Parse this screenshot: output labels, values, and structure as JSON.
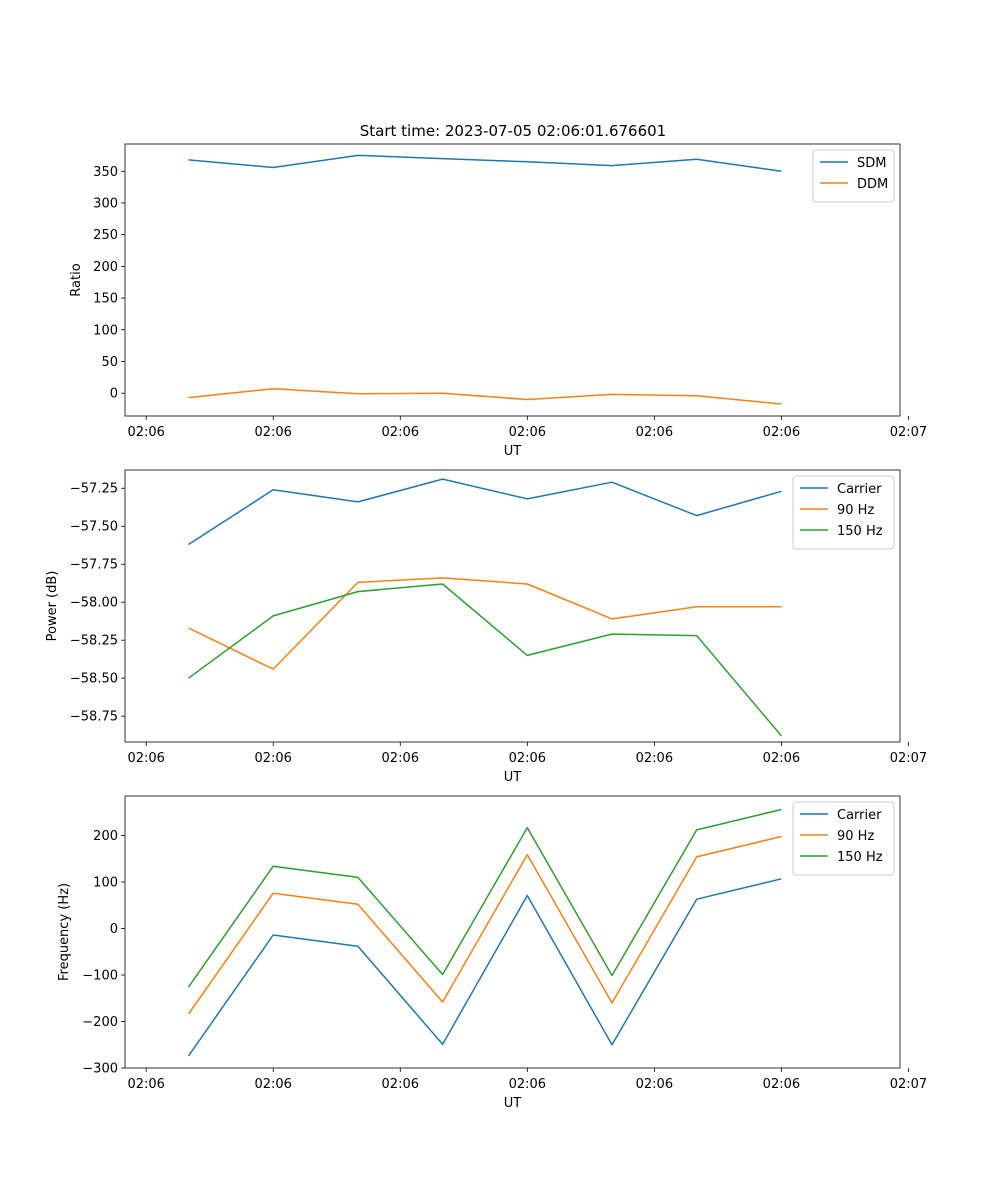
{
  "figure": {
    "suptitle": "Start time: 2023-07-05 02:06:01.676601"
  },
  "colors": {
    "blue": "#1f77b4",
    "orange": "#ff7f0e",
    "green": "#2ca02c"
  },
  "chart_data": [
    {
      "type": "line",
      "title": "Start time: 2023-07-05 02:06:01.676601",
      "xlabel": "UT",
      "ylabel": "Ratio",
      "x": [
        0,
        1,
        2,
        3,
        4,
        5,
        6,
        7
      ],
      "xlim": [
        -0.75,
        8.4
      ],
      "x_ticks": [
        {
          "x": -0.5,
          "label": "02:06"
        },
        {
          "x": 1.0,
          "label": "02:06"
        },
        {
          "x": 2.5,
          "label": "02:06"
        },
        {
          "x": 4.0,
          "label": "02:06"
        },
        {
          "x": 5.5,
          "label": "02:06"
        },
        {
          "x": 7.0,
          "label": "02:06"
        },
        {
          "x": 8.5,
          "label": "02:07"
        }
      ],
      "ylim": [
        -36,
        393
      ],
      "y_ticks": [
        {
          "y": 0,
          "label": "0"
        },
        {
          "y": 50,
          "label": "50"
        },
        {
          "y": 100,
          "label": "100"
        },
        {
          "y": 150,
          "label": "150"
        },
        {
          "y": 200,
          "label": "200"
        },
        {
          "y": 250,
          "label": "250"
        },
        {
          "y": 300,
          "label": "300"
        },
        {
          "y": 350,
          "label": "350"
        }
      ],
      "legend_position": "top-right",
      "series": [
        {
          "name": "SDM",
          "color": "#1f77b4",
          "values": [
            368,
            356,
            375,
            370,
            365,
            359,
            369,
            350
          ]
        },
        {
          "name": "DDM",
          "color": "#ff7f0e",
          "values": [
            -7,
            7,
            -1,
            0,
            -10,
            -2,
            -4,
            -17
          ]
        }
      ]
    },
    {
      "type": "line",
      "title": "",
      "xlabel": "UT",
      "ylabel": "Power (dB)",
      "x": [
        0,
        1,
        2,
        3,
        4,
        5,
        6,
        7
      ],
      "xlim": [
        -0.75,
        8.4
      ],
      "x_ticks": [
        {
          "x": -0.5,
          "label": "02:06"
        },
        {
          "x": 1.0,
          "label": "02:06"
        },
        {
          "x": 2.5,
          "label": "02:06"
        },
        {
          "x": 4.0,
          "label": "02:06"
        },
        {
          "x": 5.5,
          "label": "02:06"
        },
        {
          "x": 7.0,
          "label": "02:06"
        },
        {
          "x": 8.5,
          "label": "02:07"
        }
      ],
      "ylim": [
        -58.92,
        -57.13
      ],
      "y_ticks": [
        {
          "y": -57.25,
          "label": "−57.25"
        },
        {
          "y": -57.5,
          "label": "−57.50"
        },
        {
          "y": -57.75,
          "label": "−57.75"
        },
        {
          "y": -58.0,
          "label": "−58.00"
        },
        {
          "y": -58.25,
          "label": "−58.25"
        },
        {
          "y": -58.5,
          "label": "−58.50"
        },
        {
          "y": -58.75,
          "label": "−58.75"
        }
      ],
      "legend_position": "top-right",
      "series": [
        {
          "name": "Carrier",
          "color": "#1f77b4",
          "values": [
            -57.62,
            -57.26,
            -57.34,
            -57.19,
            -57.32,
            -57.21,
            -57.43,
            -57.27
          ]
        },
        {
          "name": "90 Hz",
          "color": "#ff7f0e",
          "values": [
            -58.17,
            -58.44,
            -57.87,
            -57.84,
            -57.88,
            -58.11,
            -58.03,
            -58.03
          ]
        },
        {
          "name": "150 Hz",
          "color": "#2ca02c",
          "values": [
            -58.5,
            -58.09,
            -57.93,
            -57.88,
            -58.35,
            -58.21,
            -58.22,
            -58.88
          ]
        }
      ]
    },
    {
      "type": "line",
      "title": "",
      "xlabel": "UT",
      "ylabel": "Frequency (Hz)",
      "x": [
        0,
        1,
        2,
        3,
        4,
        5,
        6,
        7
      ],
      "xlim": [
        -0.75,
        8.4
      ],
      "x_ticks": [
        {
          "x": -0.5,
          "label": "02:06"
        },
        {
          "x": 1.0,
          "label": "02:06"
        },
        {
          "x": 2.5,
          "label": "02:06"
        },
        {
          "x": 4.0,
          "label": "02:06"
        },
        {
          "x": 5.5,
          "label": "02:06"
        },
        {
          "x": 7.0,
          "label": "02:06"
        },
        {
          "x": 8.5,
          "label": "02:07"
        }
      ],
      "ylim": [
        -300,
        285
      ],
      "y_ticks": [
        {
          "y": -300,
          "label": "−300"
        },
        {
          "y": -200,
          "label": "−200"
        },
        {
          "y": -100,
          "label": "−100"
        },
        {
          "y": 0,
          "label": "0"
        },
        {
          "y": 100,
          "label": "100"
        },
        {
          "y": 200,
          "label": "200"
        }
      ],
      "legend_position": "top-right",
      "series": [
        {
          "name": "Carrier",
          "color": "#1f77b4",
          "values": [
            -274,
            -14,
            -38,
            -249,
            71,
            -250,
            63,
            107
          ]
        },
        {
          "name": "90 Hz",
          "color": "#ff7f0e",
          "values": [
            -184,
            76,
            52,
            -158,
            159,
            -160,
            154,
            198
          ]
        },
        {
          "name": "150 Hz",
          "color": "#2ca02c",
          "values": [
            -126,
            134,
            110,
            -99,
            217,
            -101,
            212,
            256
          ]
        }
      ]
    }
  ]
}
